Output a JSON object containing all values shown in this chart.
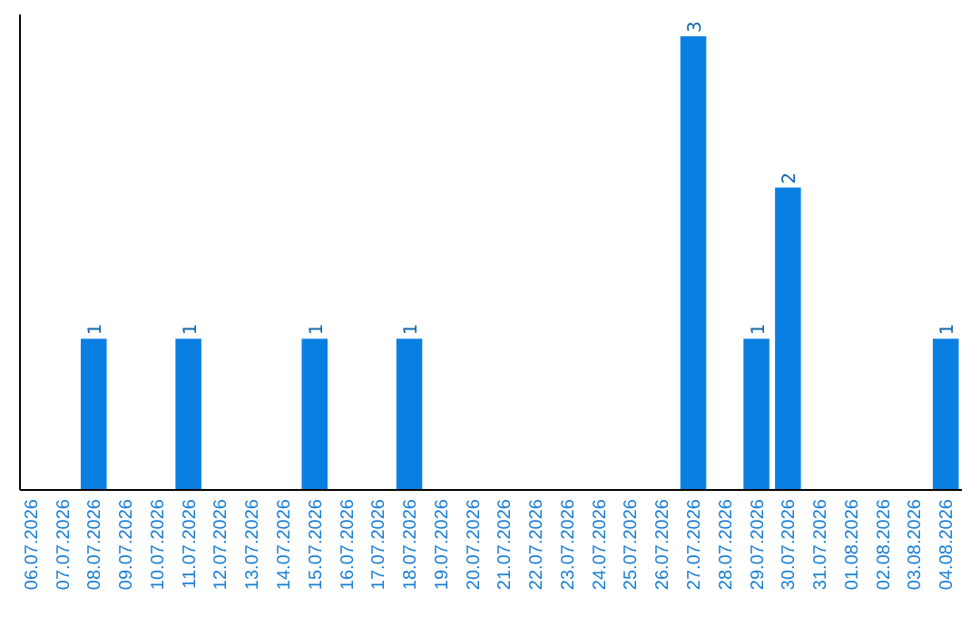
{
  "chart_data": {
    "type": "bar",
    "categories": [
      "06.07.2026",
      "07.07.2026",
      "08.07.2026",
      "09.07.2026",
      "10.07.2026",
      "11.07.2026",
      "12.07.2026",
      "13.07.2026",
      "14.07.2026",
      "15.07.2026",
      "16.07.2026",
      "17.07.2026",
      "18.07.2026",
      "19.07.2026",
      "20.07.2026",
      "21.07.2026",
      "22.07.2026",
      "23.07.2026",
      "24.07.2026",
      "25.07.2026",
      "26.07.2026",
      "27.07.2026",
      "28.07.2026",
      "29.07.2026",
      "30.07.2026",
      "31.07.2026",
      "01.08.2026",
      "02.08.2026",
      "03.08.2026",
      "04.08.2026"
    ],
    "values": [
      0,
      0,
      1,
      0,
      0,
      1,
      0,
      0,
      0,
      1,
      0,
      0,
      1,
      0,
      0,
      0,
      0,
      0,
      0,
      0,
      0,
      3,
      0,
      1,
      2,
      0,
      0,
      0,
      0,
      1
    ],
    "value_labels": [
      null,
      null,
      "1",
      null,
      null,
      "1",
      null,
      null,
      null,
      "1",
      null,
      null,
      "1",
      null,
      null,
      null,
      null,
      null,
      null,
      null,
      null,
      "3",
      null,
      "1",
      "2",
      null,
      null,
      null,
      null,
      "1"
    ],
    "color": "#0a7fe2"
  }
}
